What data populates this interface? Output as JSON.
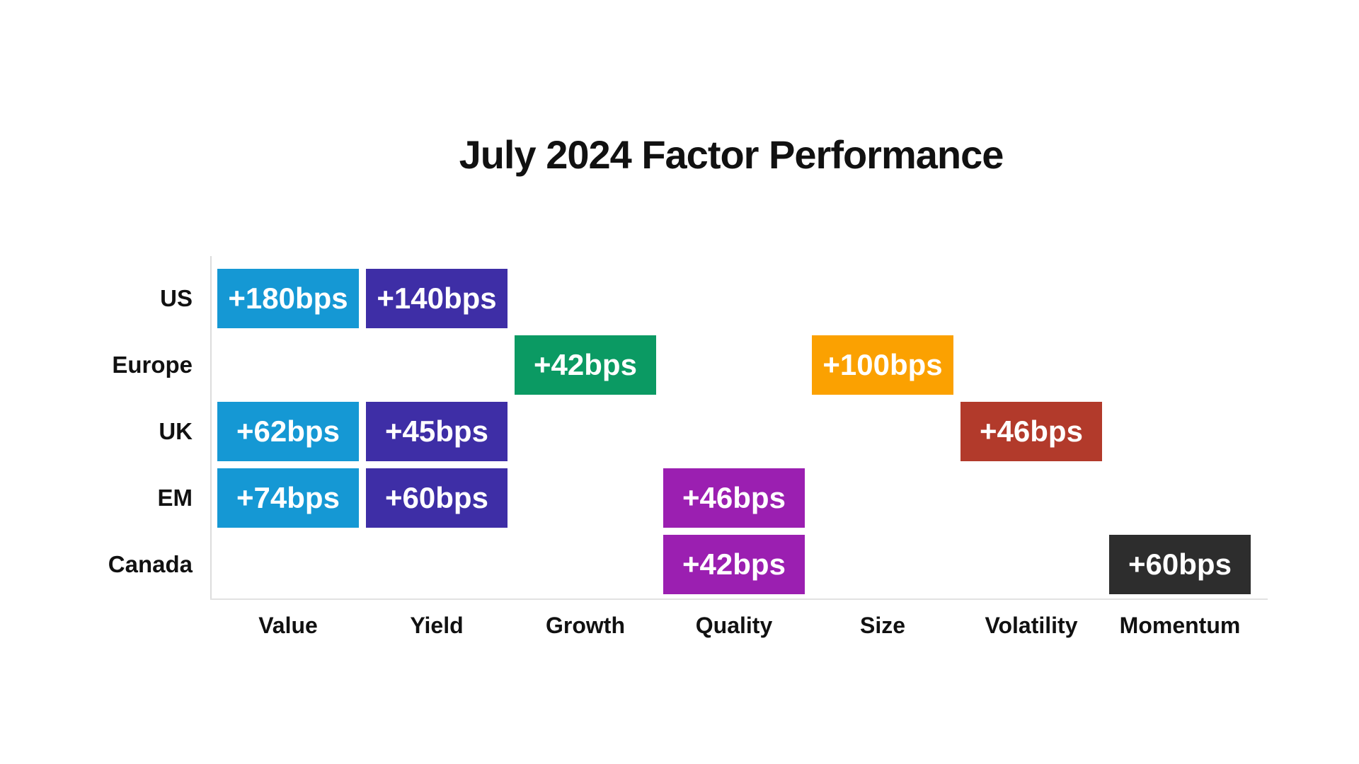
{
  "title": "July 2024 Factor Performance",
  "chart_data": {
    "type": "heatmap",
    "title": "July 2024 Factor Performance",
    "unit": "bps",
    "rows": [
      "US",
      "Europe",
      "UK",
      "EM",
      "Canada"
    ],
    "columns": [
      "Value",
      "Yield",
      "Growth",
      "Quality",
      "Size",
      "Volatility",
      "Momentum"
    ],
    "column_colors": {
      "Value": "#1598D4",
      "Yield": "#3E2EA6",
      "Growth": "#0B9A63",
      "Quality": "#9B1FB1",
      "Size": "#FBA101",
      "Volatility": "#B23A2B",
      "Momentum": "#2D2D2D"
    },
    "cells": [
      {
        "region": "US",
        "factor": "Value",
        "label": "+180bps",
        "value": 180
      },
      {
        "region": "US",
        "factor": "Yield",
        "label": "+140bps",
        "value": 140
      },
      {
        "region": "Europe",
        "factor": "Growth",
        "label": "+42bps",
        "value": 42
      },
      {
        "region": "Europe",
        "factor": "Size",
        "label": "+100bps",
        "value": 100
      },
      {
        "region": "UK",
        "factor": "Value",
        "label": "+62bps",
        "value": 62
      },
      {
        "region": "UK",
        "factor": "Yield",
        "label": "+45bps",
        "value": 45
      },
      {
        "region": "UK",
        "factor": "Volatility",
        "label": "+46bps",
        "value": 46
      },
      {
        "region": "EM",
        "factor": "Value",
        "label": "+74bps",
        "value": 74
      },
      {
        "region": "EM",
        "factor": "Yield",
        "label": "+60bps",
        "value": 60
      },
      {
        "region": "EM",
        "factor": "Quality",
        "label": "+46bps",
        "value": 46
      },
      {
        "region": "Canada",
        "factor": "Quality",
        "label": "+42bps",
        "value": 42
      },
      {
        "region": "Canada",
        "factor": "Momentum",
        "label": "+60bps",
        "value": 60
      }
    ],
    "axis_color": "#DCDCDC",
    "text_color": "#111111",
    "cell_text_color": "#FFFFFF",
    "background": "#FFFFFF",
    "legend_position": "none",
    "grid": false
  }
}
